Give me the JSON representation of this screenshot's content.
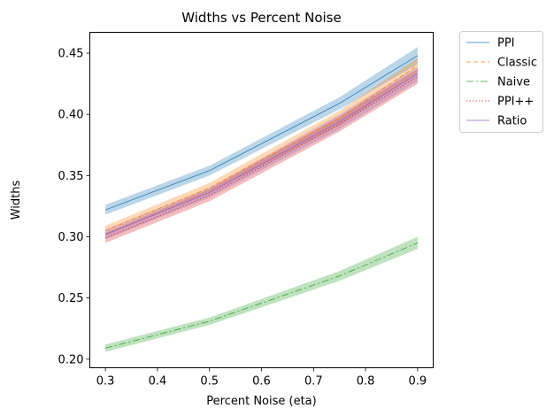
{
  "chart_data": {
    "type": "line",
    "title": "Widths vs Percent Noise",
    "xlabel": "Percent Noise (eta)",
    "ylabel": "Widths",
    "xlim": [
      0.27,
      0.93
    ],
    "ylim": [
      0.193,
      0.467
    ],
    "xticks": [
      "0.3",
      "0.4",
      "0.5",
      "0.6",
      "0.7",
      "0.8",
      "0.9"
    ],
    "xtick_values": [
      0.3,
      0.4,
      0.5,
      0.6,
      0.7,
      0.8,
      0.9
    ],
    "yticks": [
      "0.20",
      "0.25",
      "0.30",
      "0.35",
      "0.40",
      "0.45"
    ],
    "ytick_values": [
      0.2,
      0.25,
      0.3,
      0.35,
      0.4,
      0.45
    ],
    "grid": false,
    "legend_position": "outside-right",
    "x": [
      0.3,
      0.5,
      0.75,
      0.9
    ],
    "series": [
      {
        "name": "PPI",
        "color": "#1f77b4",
        "dash": "",
        "values": [
          0.322,
          0.354,
          0.409,
          0.448
        ],
        "band": [
          0.004,
          0.004,
          0.005,
          0.007
        ]
      },
      {
        "name": "Classic",
        "color": "#ff7f0e",
        "dash": "5,3",
        "values": [
          0.305,
          0.34,
          0.397,
          0.44
        ],
        "band": [
          0.004,
          0.004,
          0.006,
          0.006
        ]
      },
      {
        "name": "Naive",
        "color": "#2ca02c",
        "dash": "8,3,2,3",
        "values": [
          0.209,
          0.231,
          0.268,
          0.295
        ],
        "band": [
          0.003,
          0.003,
          0.004,
          0.005
        ]
      },
      {
        "name": "PPI++",
        "color": "#d62728",
        "dash": "1.5,2",
        "values": [
          0.299,
          0.334,
          0.392,
          0.431
        ],
        "band": [
          0.004,
          0.005,
          0.006,
          0.006
        ]
      },
      {
        "name": "Ratio",
        "color": "#9467bd",
        "dash": "",
        "values": [
          0.302,
          0.336,
          0.394,
          0.433
        ],
        "band": [
          0.004,
          0.004,
          0.006,
          0.006
        ]
      }
    ]
  }
}
